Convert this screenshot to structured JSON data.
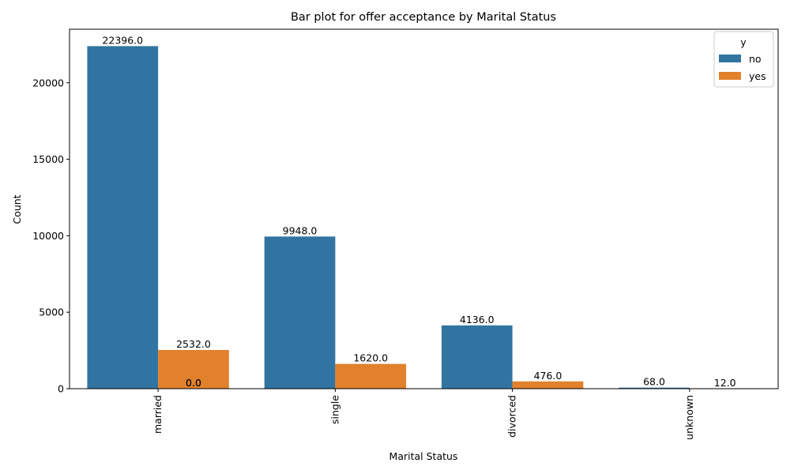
{
  "chart_data": {
    "type": "bar",
    "title": "Bar plot for offer acceptance by Marital Status",
    "xlabel": "Marital Status",
    "ylabel": "Count",
    "categories": [
      "married",
      "single",
      "divorced",
      "unknown"
    ],
    "series": [
      {
        "name": "no",
        "color": "#3274a1",
        "values": [
          22396.0,
          9948.0,
          4136.0,
          68.0
        ],
        "labels": [
          "22396.0",
          "9948.0",
          "4136.0",
          "68.0"
        ]
      },
      {
        "name": "yes",
        "color": "#e1812c",
        "values": [
          2532.0,
          1620.0,
          476.0,
          12.0
        ],
        "labels": [
          "2532.0",
          "1620.0",
          "476.0",
          "12.0"
        ]
      }
    ],
    "extra_labels": [
      "0.0",
      "0.0"
    ],
    "ylim": [
      0,
      23500
    ],
    "yticks": [
      0,
      5000,
      10000,
      15000,
      20000
    ],
    "ytick_labels": [
      "0",
      "5000",
      "10000",
      "15000",
      "20000"
    ],
    "grid": false,
    "legend": {
      "title": "y",
      "position": "top-right"
    }
  }
}
